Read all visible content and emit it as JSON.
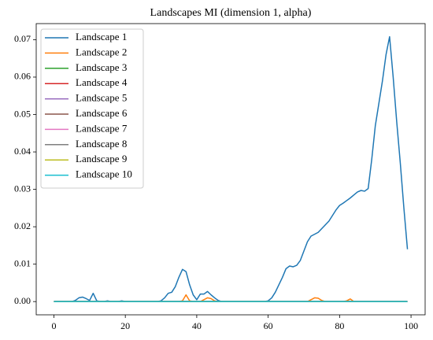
{
  "chart_data": {
    "type": "line",
    "title": "Landscapes MI (dimension 1, alpha)",
    "x": [
      0,
      1,
      2,
      3,
      4,
      5,
      6,
      7,
      8,
      9,
      10,
      11,
      12,
      13,
      14,
      15,
      16,
      17,
      18,
      19,
      20,
      21,
      22,
      23,
      24,
      25,
      26,
      27,
      28,
      29,
      30,
      31,
      32,
      33,
      34,
      35,
      36,
      37,
      38,
      39,
      40,
      41,
      42,
      43,
      44,
      45,
      46,
      47,
      48,
      49,
      50,
      51,
      52,
      53,
      54,
      55,
      56,
      57,
      58,
      59,
      60,
      61,
      62,
      63,
      64,
      65,
      66,
      67,
      68,
      69,
      70,
      71,
      72,
      73,
      74,
      75,
      76,
      77,
      78,
      79,
      80,
      81,
      82,
      83,
      84,
      85,
      86,
      87,
      88,
      89,
      90,
      91,
      92,
      93,
      94,
      95,
      96,
      97,
      98,
      99
    ],
    "series": [
      {
        "name": "Landscape 1",
        "color": "#1f77b4",
        "values": [
          0,
          0,
          0,
          0,
          0,
          0,
          0.0003,
          0.001,
          0.0012,
          0.0008,
          0.0003,
          0.0022,
          0.0002,
          0,
          0,
          0.0002,
          0,
          0,
          0,
          0.0002,
          0,
          0,
          0,
          0,
          0,
          0,
          0,
          0,
          0,
          0,
          0.0002,
          0.001,
          0.0022,
          0.0025,
          0.004,
          0.0065,
          0.0086,
          0.008,
          0.0045,
          0.0018,
          0.0005,
          0.002,
          0.002,
          0.0027,
          0.0018,
          0.001,
          0.0003,
          0,
          0,
          0,
          0,
          0,
          0,
          0,
          0,
          0,
          0,
          0,
          0,
          0,
          0.0002,
          0.001,
          0.0025,
          0.0045,
          0.0065,
          0.0088,
          0.0095,
          0.0093,
          0.0097,
          0.011,
          0.0135,
          0.016,
          0.0175,
          0.018,
          0.0185,
          0.0195,
          0.0205,
          0.0215,
          0.023,
          0.0245,
          0.0257,
          0.0263,
          0.027,
          0.0277,
          0.0285,
          0.0293,
          0.0297,
          0.0295,
          0.0302,
          0.038,
          0.047,
          0.053,
          0.059,
          0.066,
          0.0708,
          0.06,
          0.048,
          0.037,
          0.025,
          0.014
        ]
      },
      {
        "name": "Landscape 2",
        "color": "#ff7f0e",
        "values": [
          0,
          0,
          0,
          0,
          0,
          0,
          0,
          0,
          0,
          0,
          0,
          0,
          0,
          0,
          0,
          0,
          0,
          0,
          0,
          0,
          0,
          0,
          0,
          0,
          0,
          0,
          0,
          0,
          0,
          0,
          0,
          0,
          0,
          0,
          0,
          0,
          0.0002,
          0.0018,
          0.0002,
          0,
          0,
          0,
          0.0005,
          0.001,
          0.0008,
          0.0002,
          0,
          0,
          0,
          0,
          0,
          0,
          0,
          0,
          0,
          0,
          0,
          0,
          0,
          0,
          0,
          0,
          0,
          0,
          0,
          0,
          0,
          0,
          0,
          0,
          0,
          0,
          0.0005,
          0.001,
          0.0009,
          0.0003,
          0,
          0,
          0,
          0,
          0,
          0,
          0.0002,
          0.0007,
          0,
          0,
          0,
          0,
          0,
          0,
          0,
          0,
          0,
          0,
          0,
          0,
          0,
          0,
          0,
          0
        ]
      },
      {
        "name": "Landscape 3",
        "color": "#2ca02c",
        "values": [
          0,
          0,
          0,
          0,
          0,
          0,
          0,
          0,
          0,
          0,
          0,
          0,
          0,
          0,
          0,
          0,
          0,
          0,
          0,
          0,
          0,
          0,
          0,
          0,
          0,
          0,
          0,
          0,
          0,
          0,
          0,
          0,
          0,
          0,
          0,
          0,
          0,
          0,
          0,
          0,
          0,
          0,
          0,
          0,
          0,
          0,
          0,
          0,
          0,
          0,
          0,
          0,
          0,
          0,
          0,
          0,
          0,
          0,
          0,
          0,
          0,
          0,
          0,
          0,
          0,
          0,
          0,
          0,
          0,
          0,
          0,
          0,
          0,
          0,
          0,
          0,
          0,
          0,
          0,
          0,
          0,
          0,
          0,
          0,
          0,
          0,
          0,
          0,
          0,
          0,
          0,
          0,
          0,
          0,
          0,
          0,
          0,
          0,
          0,
          0
        ]
      },
      {
        "name": "Landscape 4",
        "color": "#d62728",
        "values": [
          0,
          0,
          0,
          0,
          0,
          0,
          0,
          0,
          0,
          0,
          0,
          0,
          0,
          0,
          0,
          0,
          0,
          0,
          0,
          0,
          0,
          0,
          0,
          0,
          0,
          0,
          0,
          0,
          0,
          0,
          0,
          0,
          0,
          0,
          0,
          0,
          0,
          0,
          0,
          0,
          0,
          0,
          0,
          0,
          0,
          0,
          0,
          0,
          0,
          0,
          0,
          0,
          0,
          0,
          0,
          0,
          0,
          0,
          0,
          0,
          0,
          0,
          0,
          0,
          0,
          0,
          0,
          0,
          0,
          0,
          0,
          0,
          0,
          0,
          0,
          0,
          0,
          0,
          0,
          0,
          0,
          0,
          0,
          0,
          0,
          0,
          0,
          0,
          0,
          0,
          0,
          0,
          0,
          0,
          0,
          0,
          0,
          0,
          0,
          0
        ]
      },
      {
        "name": "Landscape 5",
        "color": "#9467bd",
        "values": [
          0,
          0,
          0,
          0,
          0,
          0,
          0,
          0,
          0,
          0,
          0,
          0,
          0,
          0,
          0,
          0,
          0,
          0,
          0,
          0,
          0,
          0,
          0,
          0,
          0,
          0,
          0,
          0,
          0,
          0,
          0,
          0,
          0,
          0,
          0,
          0,
          0,
          0,
          0,
          0,
          0,
          0,
          0,
          0,
          0,
          0,
          0,
          0,
          0,
          0,
          0,
          0,
          0,
          0,
          0,
          0,
          0,
          0,
          0,
          0,
          0,
          0,
          0,
          0,
          0,
          0,
          0,
          0,
          0,
          0,
          0,
          0,
          0,
          0,
          0,
          0,
          0,
          0,
          0,
          0,
          0,
          0,
          0,
          0,
          0,
          0,
          0,
          0,
          0,
          0,
          0,
          0,
          0,
          0,
          0,
          0,
          0,
          0,
          0,
          0
        ]
      },
      {
        "name": "Landscape 6",
        "color": "#8c564b",
        "values": [
          0,
          0,
          0,
          0,
          0,
          0,
          0,
          0,
          0,
          0,
          0,
          0,
          0,
          0,
          0,
          0,
          0,
          0,
          0,
          0,
          0,
          0,
          0,
          0,
          0,
          0,
          0,
          0,
          0,
          0,
          0,
          0,
          0,
          0,
          0,
          0,
          0,
          0,
          0,
          0,
          0,
          0,
          0,
          0,
          0,
          0,
          0,
          0,
          0,
          0,
          0,
          0,
          0,
          0,
          0,
          0,
          0,
          0,
          0,
          0,
          0,
          0,
          0,
          0,
          0,
          0,
          0,
          0,
          0,
          0,
          0,
          0,
          0,
          0,
          0,
          0,
          0,
          0,
          0,
          0,
          0,
          0,
          0,
          0,
          0,
          0,
          0,
          0,
          0,
          0,
          0,
          0,
          0,
          0,
          0,
          0,
          0,
          0,
          0,
          0
        ]
      },
      {
        "name": "Landscape 7",
        "color": "#e377c2",
        "values": [
          0,
          0,
          0,
          0,
          0,
          0,
          0,
          0,
          0,
          0,
          0,
          0,
          0,
          0,
          0,
          0,
          0,
          0,
          0,
          0,
          0,
          0,
          0,
          0,
          0,
          0,
          0,
          0,
          0,
          0,
          0,
          0,
          0,
          0,
          0,
          0,
          0,
          0,
          0,
          0,
          0,
          0,
          0,
          0,
          0,
          0,
          0,
          0,
          0,
          0,
          0,
          0,
          0,
          0,
          0,
          0,
          0,
          0,
          0,
          0,
          0,
          0,
          0,
          0,
          0,
          0,
          0,
          0,
          0,
          0,
          0,
          0,
          0,
          0,
          0,
          0,
          0,
          0,
          0,
          0,
          0,
          0,
          0,
          0,
          0,
          0,
          0,
          0,
          0,
          0,
          0,
          0,
          0,
          0,
          0,
          0,
          0,
          0,
          0,
          0
        ]
      },
      {
        "name": "Landscape 8",
        "color": "#7f7f7f",
        "values": [
          0,
          0,
          0,
          0,
          0,
          0,
          0,
          0,
          0,
          0,
          0,
          0,
          0,
          0,
          0,
          0,
          0,
          0,
          0,
          0,
          0,
          0,
          0,
          0,
          0,
          0,
          0,
          0,
          0,
          0,
          0,
          0,
          0,
          0,
          0,
          0,
          0,
          0,
          0,
          0,
          0,
          0,
          0,
          0,
          0,
          0,
          0,
          0,
          0,
          0,
          0,
          0,
          0,
          0,
          0,
          0,
          0,
          0,
          0,
          0,
          0,
          0,
          0,
          0,
          0,
          0,
          0,
          0,
          0,
          0,
          0,
          0,
          0,
          0,
          0,
          0,
          0,
          0,
          0,
          0,
          0,
          0,
          0,
          0,
          0,
          0,
          0,
          0,
          0,
          0,
          0,
          0,
          0,
          0,
          0,
          0,
          0,
          0,
          0,
          0
        ]
      },
      {
        "name": "Landscape 9",
        "color": "#bcbd22",
        "values": [
          0,
          0,
          0,
          0,
          0,
          0,
          0,
          0,
          0,
          0,
          0,
          0,
          0,
          0,
          0,
          0,
          0,
          0,
          0,
          0,
          0,
          0,
          0,
          0,
          0,
          0,
          0,
          0,
          0,
          0,
          0,
          0,
          0,
          0,
          0,
          0,
          0,
          0,
          0,
          0,
          0,
          0,
          0,
          0,
          0,
          0,
          0,
          0,
          0,
          0,
          0,
          0,
          0,
          0,
          0,
          0,
          0,
          0,
          0,
          0,
          0,
          0,
          0,
          0,
          0,
          0,
          0,
          0,
          0,
          0,
          0,
          0,
          0,
          0,
          0,
          0,
          0,
          0,
          0,
          0,
          0,
          0,
          0,
          0,
          0,
          0,
          0,
          0,
          0,
          0,
          0,
          0,
          0,
          0,
          0,
          0,
          0,
          0,
          0,
          0
        ]
      },
      {
        "name": "Landscape 10",
        "color": "#17becf",
        "values": [
          0,
          0,
          0,
          0,
          0,
          0,
          0,
          0,
          0,
          0,
          0,
          0,
          0,
          0,
          0,
          0,
          0,
          0,
          0,
          0,
          0,
          0,
          0,
          0,
          0,
          0,
          0,
          0,
          0,
          0,
          0,
          0,
          0,
          0,
          0,
          0,
          0,
          0,
          0,
          0,
          0,
          0,
          0,
          0,
          0,
          0,
          0,
          0,
          0,
          0,
          0,
          0,
          0,
          0,
          0,
          0,
          0,
          0,
          0,
          0,
          0,
          0,
          0,
          0,
          0,
          0,
          0,
          0,
          0,
          0,
          0,
          0,
          0,
          0,
          0,
          0,
          0,
          0,
          0,
          0,
          0,
          0,
          0,
          0,
          0,
          0,
          0,
          0,
          0,
          0,
          0,
          0,
          0,
          0,
          0,
          0,
          0,
          0,
          0,
          0
        ]
      }
    ],
    "xlim": [
      -4.95,
      103.95
    ],
    "xticks": [
      0,
      20,
      40,
      60,
      80,
      100
    ],
    "ylim": [
      -0.00354,
      0.0743
    ],
    "yticks": [
      {
        "value": 0,
        "label": "0.00"
      },
      {
        "value": 0.01,
        "label": "0.01"
      },
      {
        "value": 0.02,
        "label": "0.02"
      },
      {
        "value": 0.03,
        "label": "0.03"
      },
      {
        "value": 0.04,
        "label": "0.04"
      },
      {
        "value": 0.05,
        "label": "0.05"
      },
      {
        "value": 0.06,
        "label": "0.06"
      },
      {
        "value": 0.07,
        "label": "0.07"
      }
    ],
    "grid": false,
    "legend": "upper left"
  }
}
